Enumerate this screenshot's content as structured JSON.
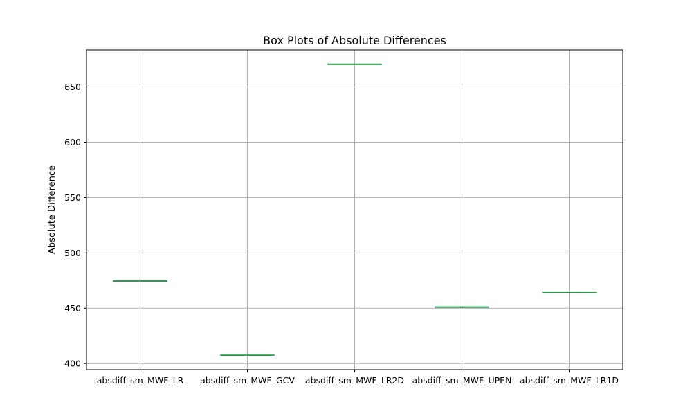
{
  "chart_data": {
    "type": "box",
    "title": "Box Plots of Absolute Differences",
    "xlabel": "",
    "ylabel": "Absolute Difference",
    "categories": [
      "absdiff_sm_MWF_LR",
      "absdiff_sm_MWF_GCV",
      "absdiff_sm_MWF_LR2D",
      "absdiff_sm_MWF_UPEN",
      "absdiff_sm_MWF_LR1D"
    ],
    "values": [
      474.5,
      407.5,
      670.5,
      451,
      464
    ],
    "yticks": [
      400,
      450,
      500,
      550,
      600,
      650
    ],
    "ylim": [
      394.5,
      683.5
    ],
    "grid": true,
    "box_color": "#1f77b4",
    "median_color": "#2ca02c",
    "grid_color": "#b0b0b0"
  }
}
